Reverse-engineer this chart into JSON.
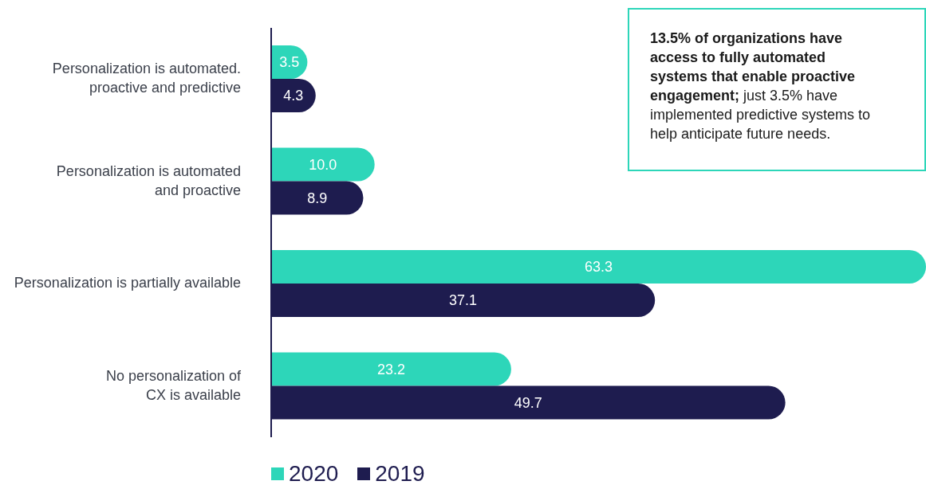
{
  "chart_data": {
    "type": "bar",
    "orientation": "horizontal",
    "legend": "bottom",
    "categories": [
      "Personalization is automated.\nproactive and predictive",
      "Personalization is automated\nand proactive",
      "Personalization is partially available",
      "No personalization of\nCX is available"
    ],
    "series": [
      {
        "name": "2020",
        "color": "#2dd6b9",
        "values": [
          3.5,
          10.0,
          63.3,
          23.2
        ],
        "value_labels": [
          "3.5",
          "10.0",
          "63.3",
          "23.2"
        ]
      },
      {
        "name": "2019",
        "color": "#1e1c4f",
        "values": [
          4.3,
          8.9,
          37.1,
          49.7
        ],
        "value_labels": [
          "4.3",
          "8.9",
          "37.1",
          "49.7"
        ]
      }
    ],
    "annotations": [
      "13.5% of organizations have access to fully automated systems that enable proactive engagement;",
      "just 3.5% have implemented predictive systems to help anticipate future needs."
    ]
  }
}
